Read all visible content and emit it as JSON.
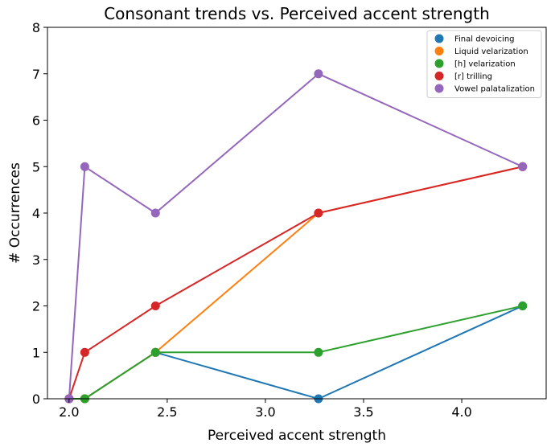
{
  "chart_data": {
    "type": "line",
    "title": "Consonant trends vs. Perceived accent strength",
    "xlabel": "Perceived accent strength",
    "ylabel": "# Occurrences",
    "xlim": [
      1.89,
      4.43
    ],
    "ylim": [
      0,
      8
    ],
    "xticks": [
      2.0,
      2.5,
      3.0,
      3.5,
      4.0
    ],
    "xtick_labels": [
      "2.0",
      "2.5",
      "3.0",
      "3.5",
      "4.0"
    ],
    "yticks": [
      0,
      1,
      2,
      3,
      4,
      5,
      6,
      7,
      8
    ],
    "ytick_labels": [
      "0",
      "1",
      "2",
      "3",
      "4",
      "5",
      "6",
      "7",
      "8"
    ],
    "grid": false,
    "legend_position": "top-right",
    "x": [
      2.0,
      2.08,
      2.44,
      3.27,
      4.31
    ],
    "series": [
      {
        "name": "Final devoicing",
        "color": "#1f77b4",
        "values": [
          0,
          0,
          1,
          0,
          2
        ]
      },
      {
        "name": "Liquid velarization",
        "color": "#ff7f0e",
        "values": [
          0,
          0,
          1,
          4,
          5
        ]
      },
      {
        "name": "[h] velarization",
        "color": "#2ca02c",
        "values": [
          0,
          0,
          1,
          1,
          2
        ]
      },
      {
        "name": "[r] trilling",
        "color": "#d62728",
        "values": [
          0,
          1,
          2,
          4,
          5
        ]
      },
      {
        "name": "Vowel palatalization",
        "color": "#9467bd",
        "values": [
          0,
          5,
          4,
          7,
          5
        ]
      }
    ]
  }
}
